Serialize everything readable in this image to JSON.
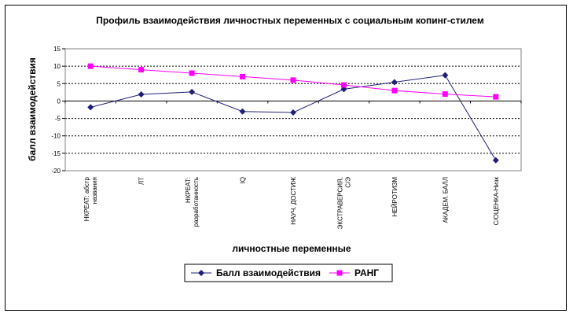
{
  "chart_data": {
    "type": "line",
    "title": "Профиль взаимодействия личностных переменных с социальным копинг-стилем",
    "xlabel": "личностные переменные",
    "ylabel": "балл взаимодействия",
    "categories": [
      [
        "НКРЕАТ: абстр",
        "названия"
      ],
      [
        "ЛТ"
      ],
      [
        "НКРЕАТ:",
        "разработанность"
      ],
      [
        "IQ"
      ],
      [
        "НАУЧ. ДОСТИЖ"
      ],
      [
        "ЭКСТРАВЕРСИЯ,",
        "С/Э"
      ],
      [
        "НЕЙРОТИЗМ"
      ],
      [
        "АКАДЕМ. БАЛЛ"
      ],
      [
        "С/ОЦЕНКА-Низк"
      ]
    ],
    "ylim": [
      -20,
      15
    ],
    "yticks": [
      15,
      10,
      5,
      0,
      -5,
      -10,
      -15,
      -20
    ],
    "grid": true,
    "legend": "bottom",
    "series": [
      {
        "name": "Балл взаимодействия",
        "color": "#1f1f78",
        "marker": "diamond",
        "values": [
          -1.8,
          1.9,
          2.6,
          -3.0,
          -3.3,
          3.4,
          5.4,
          7.4,
          -17.0
        ]
      },
      {
        "name": "РАНГ",
        "color": "#ff00ff",
        "marker": "square",
        "values": [
          10,
          9,
          8,
          7,
          6,
          4.6,
          3.0,
          2.0,
          1.2
        ]
      }
    ]
  }
}
